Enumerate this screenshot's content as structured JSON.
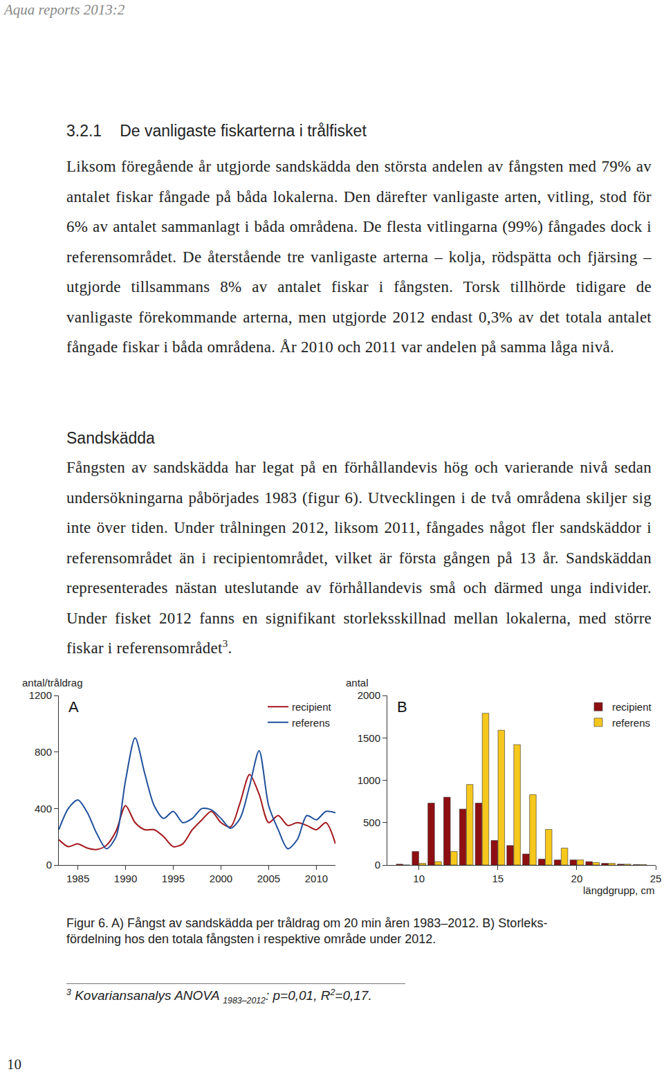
{
  "header": "Aqua reports 2013:2",
  "section": {
    "number": "3.2.1",
    "title": "De vanligaste fiskarterna i trålfisket"
  },
  "paragraph1": [
    {
      "text": "Liksom föregående år utgjorde sandskädda den största andelen av fångsten med 79% av antalet fiskar fångade på båda lokalerna. Den därefter vanligaste arten, vitling, stod för 6% av antalet sammanlagt i båda områdena. De flesta vitlingarna (99%) fångades dock i referensområdet. De återstående tre vanligaste arterna – kolja, rödspätta och fjärsing – utgjorde tillsammans 8% av antalet fiskar i fångsten. Torsk tillhörde tidigare de vanligaste förekommande arterna, men utgjorde 2012 endast 0,3% av det totala antalet fångade fiskar i båda områdena. År 2010 och 2011 var andelen på samma låga nivå."
    }
  ],
  "subsection": "Sandskädda",
  "paragraph2": [
    {
      "text": "Fångsten av sandskädda har legat på en förhållandevis hög och varierande nivå sedan undersökningarna påbörjades 1983 (figur 6). Utvecklingen i de två områdena skiljer sig inte över tiden. Under trålningen 2012, liksom 2011, fångades något fler sandskäddor i referensområdet än i recipientområdet, vilket är första gången på 13 år. Sandskäddan representerades nästan uteslutande av förhållandevis små och därmed unga individer. Under fisket 2012 fanns en signifikant storleksskillnad mellan lokalerna, med större fiskar i referensområdet"
    },
    {
      "text": "3",
      "style": "sup"
    },
    {
      "text": "."
    }
  ],
  "chart_data": [
    {
      "type": "line",
      "title": "A",
      "y_label": "antal/tråldrag",
      "x": [
        1983,
        1984,
        1985,
        1986,
        1987,
        1988,
        1989,
        1990,
        1991,
        1992,
        1993,
        1994,
        1995,
        1996,
        1997,
        1998,
        1999,
        2000,
        2001,
        2002,
        2003,
        2004,
        2005,
        2006,
        2007,
        2008,
        2009,
        2010,
        2011,
        2012
      ],
      "series": [
        {
          "name": "recipient",
          "color": "#a3171b",
          "values": [
            180,
            130,
            150,
            120,
            110,
            140,
            240,
            420,
            300,
            250,
            250,
            200,
            130,
            150,
            250,
            320,
            380,
            300,
            270,
            440,
            640,
            500,
            300,
            350,
            280,
            300,
            280,
            250,
            300,
            150
          ]
        },
        {
          "name": "referens",
          "color": "#1f4f9c",
          "values": [
            250,
            400,
            460,
            370,
            220,
            115,
            200,
            600,
            900,
            650,
            420,
            330,
            380,
            300,
            330,
            400,
            390,
            330,
            260,
            330,
            560,
            810,
            420,
            250,
            115,
            180,
            350,
            320,
            380,
            370
          ]
        }
      ],
      "xlim": [
        1983,
        2012
      ],
      "xticks": [
        1985,
        1990,
        1995,
        2000,
        2005,
        2010
      ],
      "ylim": [
        0,
        1200
      ],
      "yticks": [
        0,
        400,
        800,
        1200
      ],
      "legend": "top right"
    },
    {
      "type": "bar",
      "title": "B",
      "y_label": "antal",
      "x_label": "längdgrupp, cm",
      "x": [
        9,
        10,
        11,
        12,
        13,
        14,
        15,
        16,
        17,
        18,
        19,
        20,
        21,
        22,
        23,
        24
      ],
      "series": [
        {
          "name": "recipient",
          "color": "#8e0f12",
          "values": [
            10,
            160,
            730,
            800,
            660,
            730,
            290,
            230,
            130,
            70,
            60,
            60,
            40,
            20,
            10,
            5
          ]
        },
        {
          "name": "referens",
          "color": "#f6c71c",
          "values": [
            0,
            20,
            40,
            160,
            950,
            1790,
            1590,
            1420,
            830,
            420,
            200,
            60,
            30,
            20,
            10,
            5
          ]
        }
      ],
      "xlim": [
        8,
        25
      ],
      "xticks": [
        10,
        15,
        20,
        25
      ],
      "ylim": [
        0,
        2000
      ],
      "yticks": [
        0,
        500,
        1000,
        1500,
        2000
      ],
      "legend": "top right"
    }
  ],
  "caption": [
    "Figur 6. A) Fångst av sandskädda per tråldrag om 20 min åren 1983–2012. B) Storleks-",
    "fördelning hos den totala fångsten i respektive område under 2012."
  ],
  "footnote": [
    {
      "text": "3",
      "style": "sup"
    },
    {
      "text": " Kovariansanalys ANOVA "
    },
    {
      "text": "1983–2012",
      "style": "sub"
    },
    {
      "text": ": p=0,01, R"
    },
    {
      "text": "2",
      "style": "sup"
    },
    {
      "text": "=0,17."
    }
  ],
  "page_number": "10"
}
